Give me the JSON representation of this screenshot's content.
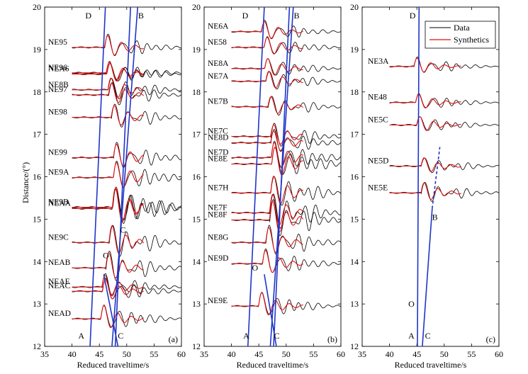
{
  "figure": {
    "ylabel": "Distance/(°)"
  },
  "legend": {
    "data_label": "Data",
    "synthetics_label": "Synthetics",
    "data_color": "#000000",
    "synthetics_color": "#ff0000"
  },
  "colors": {
    "branch": "#1f35c8",
    "data": "#000000",
    "synthetics": "#e01010"
  },
  "chart_data": [
    {
      "type": "line",
      "panel_label": "(a)",
      "xlabel": "Reduced traveltime/s",
      "ylabel": "Distance/(°)",
      "xlim": [
        35,
        60
      ],
      "ylim": [
        12,
        20
      ],
      "xticks": [
        35,
        40,
        45,
        50,
        55,
        60
      ],
      "yticks": [
        12,
        13,
        14,
        15,
        16,
        17,
        18,
        19,
        20
      ],
      "stations": [
        {
          "name": "NE95",
          "dist": 19.05,
          "onset": 46.0,
          "amp": 0.35
        },
        {
          "name": "NE96",
          "dist": 18.45,
          "onset": 46.3,
          "amp": 0.32
        },
        {
          "name": "NEA6",
          "dist": 18.42,
          "onset": 46.4,
          "amp": 0.32
        },
        {
          "name": "NE8B",
          "dist": 18.05,
          "onset": 46.6,
          "amp": 0.35
        },
        {
          "name": "NE97",
          "dist": 17.93,
          "onset": 46.7,
          "amp": 0.35
        },
        {
          "name": "NE98",
          "dist": 17.4,
          "onset": 47.2,
          "amp": 0.35
        },
        {
          "name": "NE99",
          "dist": 16.45,
          "onset": 47.6,
          "amp": 0.4
        },
        {
          "name": "NE9A",
          "dist": 15.98,
          "onset": 47.6,
          "amp": 0.45
        },
        {
          "name": "NE9B",
          "dist": 15.28,
          "onset": 47.5,
          "amp": 0.6
        },
        {
          "name": "NEAA",
          "dist": 15.25,
          "onset": 47.4,
          "amp": 0.6
        },
        {
          "name": "NE9C",
          "dist": 14.45,
          "onset": 46.8,
          "amp": 0.5
        },
        {
          "name": "NEAB",
          "dist": 13.85,
          "onset": 46.2,
          "amp": 0.45
        },
        {
          "name": "NEAE",
          "dist": 13.4,
          "onset": 45.5,
          "amp": 0.35
        },
        {
          "name": "NEAC",
          "dist": 13.3,
          "onset": 45.6,
          "amp": 0.35
        },
        {
          "name": "NEAD",
          "dist": 12.65,
          "onset": 45.3,
          "amp": 0.4
        }
      ],
      "branches": [
        {
          "label": "D",
          "x1": 46.1,
          "y1": 20.0,
          "x2": 43.3,
          "y2": 12.0
        },
        {
          "label": "B",
          "x1": 52.0,
          "y1": 20.0,
          "x2": 47.3,
          "y2": 12.0
        },
        {
          "label": "A",
          "x1": 45.8,
          "y1": 13.7,
          "x2": 48.4,
          "y2": 12.0
        },
        {
          "label": "C",
          "x1": 50.7,
          "y1": 20.0,
          "x2": 47.9,
          "y2": 12.0
        }
      ],
      "branch_labels": [
        {
          "text": "D",
          "x": 43.0,
          "y": 19.8
        },
        {
          "text": "B",
          "x": 52.6,
          "y": 19.8
        },
        {
          "text": "A",
          "x": 41.7,
          "y": 12.25
        },
        {
          "text": "C",
          "x": 48.9,
          "y": 12.25
        },
        {
          "text": "O",
          "x": 46.2,
          "y": 14.15
        },
        {
          "text": "C",
          "x": 49.3,
          "y": 14.75
        }
      ]
    },
    {
      "type": "line",
      "panel_label": "(b)",
      "xlabel": "Reduced traveltime/s",
      "ylabel": "",
      "xlim": [
        35,
        60
      ],
      "ylim": [
        12,
        20
      ],
      "xticks": [
        35,
        40,
        45,
        50,
        55,
        60
      ],
      "yticks": [
        12,
        13,
        14,
        15,
        16,
        17,
        18,
        19,
        20
      ],
      "stations": [
        {
          "name": "NE6A",
          "dist": 19.42,
          "onset": 45.5,
          "amp": 0.3
        },
        {
          "name": "NE58",
          "dist": 19.05,
          "onset": 46.0,
          "amp": 0.3
        },
        {
          "name": "NE8A",
          "dist": 18.55,
          "onset": 46.1,
          "amp": 0.3
        },
        {
          "name": "NE7A",
          "dist": 18.25,
          "onset": 46.3,
          "amp": 0.3
        },
        {
          "name": "NE7B",
          "dist": 17.65,
          "onset": 46.7,
          "amp": 0.3
        },
        {
          "name": "NE7C",
          "dist": 16.95,
          "onset": 47.2,
          "amp": 0.35
        },
        {
          "name": "NE8D",
          "dist": 16.8,
          "onset": 47.2,
          "amp": 0.35
        },
        {
          "name": "NE7D",
          "dist": 16.45,
          "onset": 47.3,
          "amp": 0.45
        },
        {
          "name": "NE8E",
          "dist": 16.3,
          "onset": 47.4,
          "amp": 0.5
        },
        {
          "name": "NE7H",
          "dist": 15.62,
          "onset": 47.2,
          "amp": 0.5
        },
        {
          "name": "NE7F",
          "dist": 15.15,
          "onset": 47.0,
          "amp": 0.55
        },
        {
          "name": "NE8F",
          "dist": 14.98,
          "onset": 47.0,
          "amp": 0.55
        },
        {
          "name": "NE8G",
          "dist": 14.45,
          "onset": 46.3,
          "amp": 0.45
        },
        {
          "name": "NE9D",
          "dist": 13.95,
          "onset": 45.7,
          "amp": 0.4
        },
        {
          "name": "NE9E",
          "dist": 12.95,
          "onset": 45.0,
          "amp": 0.4
        }
      ],
      "branches": [
        {
          "label": "D",
          "x1": 46.0,
          "y1": 20.0,
          "x2": 43.0,
          "y2": 12.0
        },
        {
          "label": "B",
          "x1": 51.3,
          "y1": 20.0,
          "x2": 47.1,
          "y2": 12.0
        },
        {
          "label": "A",
          "x1": 46.0,
          "y1": 13.7,
          "x2": 48.2,
          "y2": 12.0
        },
        {
          "label": "C",
          "x1": 50.6,
          "y1": 20.0,
          "x2": 47.7,
          "y2": 12.0
        }
      ],
      "branch_labels": [
        {
          "text": "D",
          "x": 42.5,
          "y": 19.8
        },
        {
          "text": "B",
          "x": 51.9,
          "y": 19.8
        },
        {
          "text": "A",
          "x": 42.7,
          "y": 12.25
        },
        {
          "text": "C",
          "x": 48.3,
          "y": 12.25
        },
        {
          "text": "O",
          "x": 44.3,
          "y": 13.85
        }
      ]
    },
    {
      "type": "line",
      "panel_label": "(c)",
      "xlabel": "Reduced traveltime/s",
      "ylabel": "",
      "xlim": [
        35,
        60
      ],
      "ylim": [
        12,
        20
      ],
      "xticks": [
        35,
        40,
        45,
        50,
        55,
        60
      ],
      "yticks": [
        12,
        13,
        14,
        15,
        16,
        17,
        18,
        19,
        20
      ],
      "stations": [
        {
          "name": "NE3A",
          "dist": 18.6,
          "onset": 44.5,
          "amp": 0.25
        },
        {
          "name": "NE48",
          "dist": 17.75,
          "onset": 44.8,
          "amp": 0.25
        },
        {
          "name": "NE5C",
          "dist": 17.22,
          "onset": 45.0,
          "amp": 0.25
        },
        {
          "name": "NE5D",
          "dist": 16.25,
          "onset": 45.8,
          "amp": 0.25
        },
        {
          "name": "NE5E",
          "dist": 15.62,
          "onset": 45.8,
          "amp": 0.3
        }
      ],
      "branches": [
        {
          "label": "D",
          "x1": 45.4,
          "y1": 20.0,
          "x2": 45.1,
          "y2": 12.0
        },
        {
          "label": "B",
          "x1": 47.8,
          "y1": 15.25,
          "x2": 46.0,
          "y2": 12.0
        }
      ],
      "dashed_branch": {
        "x1": 47.8,
        "y1": 15.25,
        "x2": 49.2,
        "y2": 16.7
      },
      "branch_labels": [
        {
          "text": "D",
          "x": 44.2,
          "y": 19.8
        },
        {
          "text": "B",
          "x": 48.3,
          "y": 15.05
        },
        {
          "text": "A",
          "x": 44.0,
          "y": 12.25
        },
        {
          "text": "C",
          "x": 47.0,
          "y": 12.25
        },
        {
          "text": "O",
          "x": 44.0,
          "y": 13.0
        }
      ]
    }
  ]
}
